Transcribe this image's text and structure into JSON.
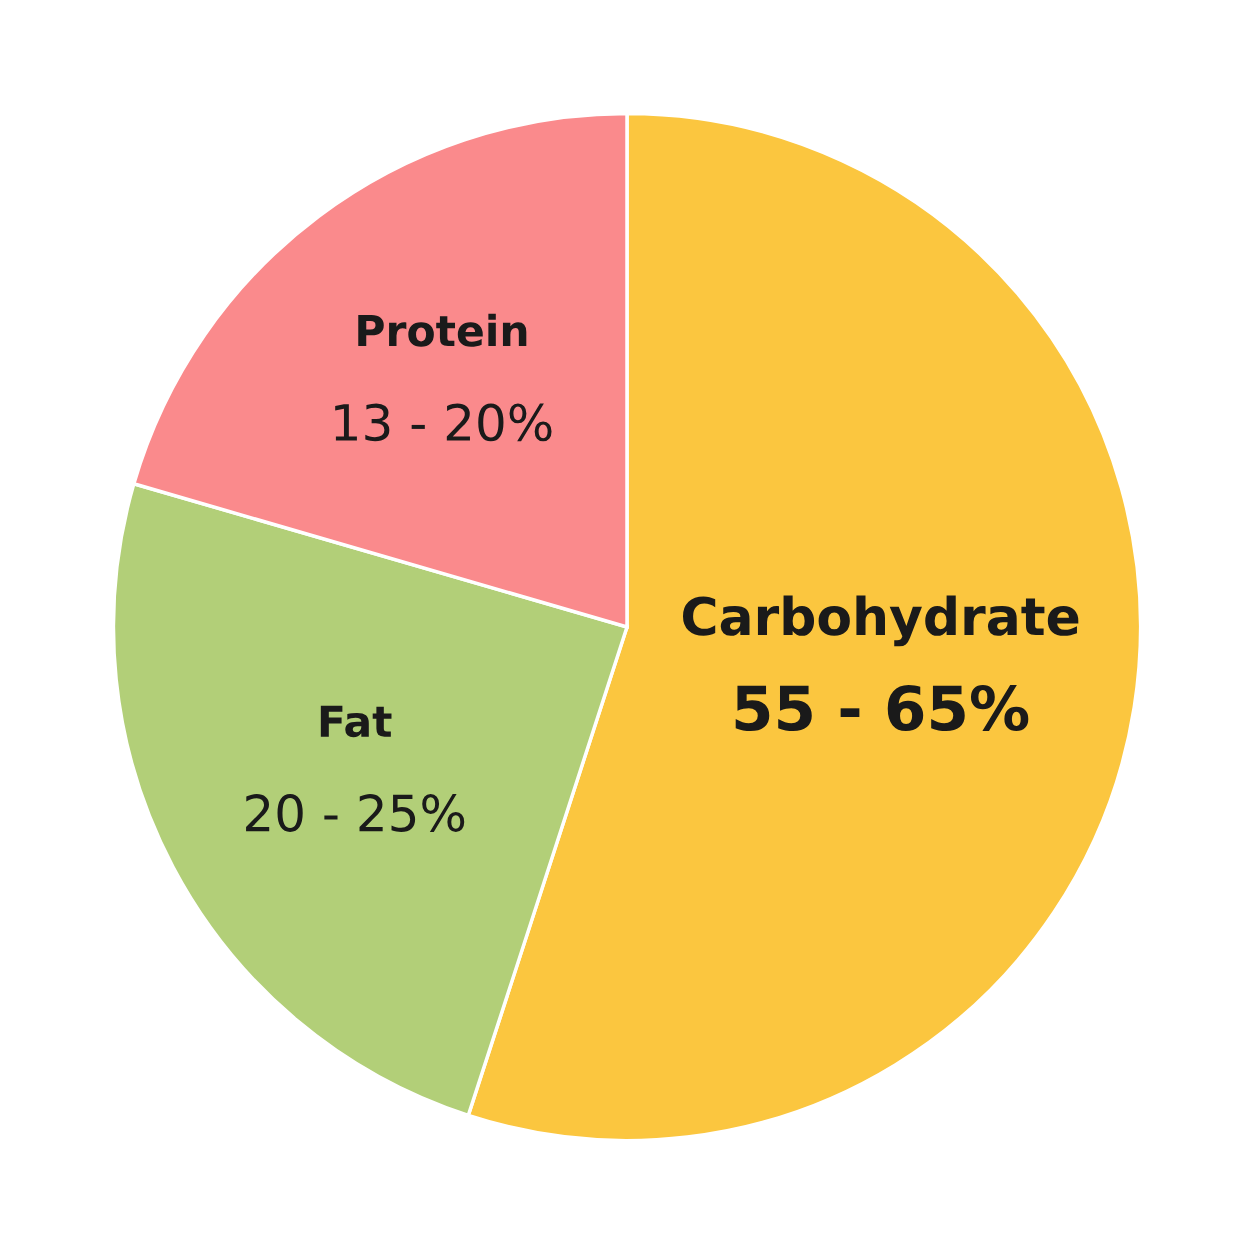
{
  "chart_data": {
    "type": "pie",
    "categories": [
      "Carbohydrate",
      "Fat",
      "Protein"
    ],
    "values": [
      55,
      24.5,
      20.5
    ],
    "annotations": [
      "55 - 65%",
      "20 - 25%",
      "13 - 20%"
    ],
    "colors": [
      "#fbc63f",
      "#b2cf78",
      "#fa8a8c"
    ]
  }
}
